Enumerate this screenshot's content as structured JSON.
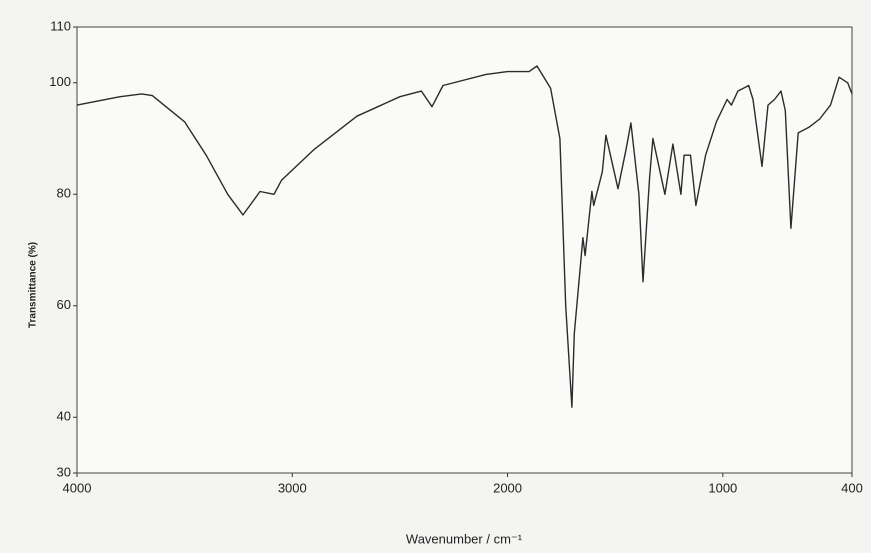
{
  "chart_data": {
    "type": "line",
    "xlabel": "Wavenumber / cm⁻¹",
    "ylabel": "Transmittance (%)",
    "x": [
      4000,
      3800,
      3700,
      3650,
      3500,
      3400,
      3300,
      3229,
      3150,
      3085,
      3050,
      2900,
      2700,
      2500,
      2400,
      2351,
      2300,
      2100,
      2000,
      1900,
      1863,
      1800,
      1757,
      1730,
      1701,
      1690,
      1650,
      1640,
      1608,
      1600,
      1560,
      1543,
      1487,
      1450,
      1427,
      1390,
      1371,
      1340,
      1325,
      1269,
      1232,
      1195,
      1180,
      1150,
      1125,
      1080,
      1030,
      980,
      960,
      930,
      880,
      860,
      818,
      790,
      760,
      730,
      710,
      684,
      650,
      600,
      550,
      500,
      460,
      420,
      400
    ],
    "series": [
      {
        "name": "Transmittance",
        "color": "#2b2b2b",
        "values": [
          96,
          97.5,
          98,
          97.7,
          93,
          87,
          80,
          76.3,
          80.5,
          80,
          82.5,
          88,
          94,
          97.5,
          98.5,
          95.7,
          99.5,
          101.5,
          102,
          102,
          103,
          99,
          90,
          60,
          41.8,
          55,
          72.2,
          69,
          80.5,
          78,
          84,
          90.6,
          81,
          88,
          92.8,
          80,
          64.3,
          83,
          90,
          80,
          89,
          80,
          87,
          87,
          78,
          87,
          93,
          97,
          96,
          98.5,
          99.5,
          97,
          85,
          96,
          97,
          98.5,
          95,
          73.9,
          91,
          92,
          93.5,
          96,
          101,
          100,
          98
        ]
      }
    ],
    "xlim": [
      4000,
      400
    ],
    "xticks": [
      4000,
      3000,
      2000,
      1000,
      400
    ],
    "ylim": [
      30,
      110
    ],
    "yticks": [
      30,
      40,
      60,
      80,
      100,
      110
    ],
    "grid": false
  }
}
